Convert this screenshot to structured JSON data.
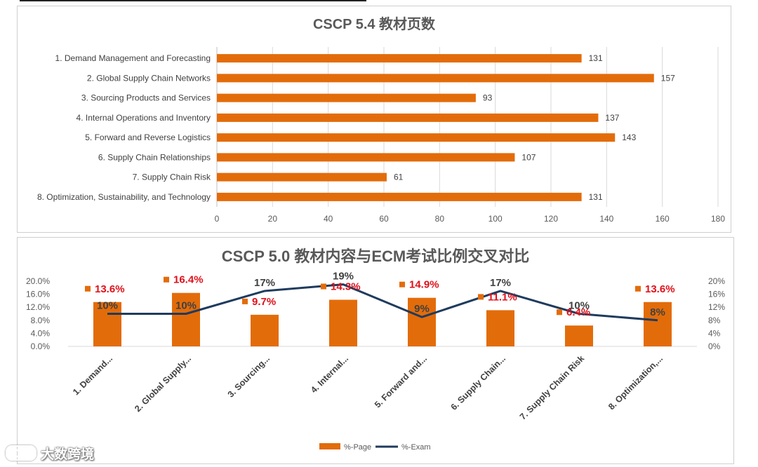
{
  "chart_data": [
    {
      "type": "bar",
      "orientation": "horizontal",
      "title": "CSCP 5.4 教材页数",
      "categories": [
        "1. Demand Management and Forecasting",
        "2. Global Supply Chain Networks",
        "3. Sourcing Products and Services",
        "4. Internal Operations and Inventory",
        "5. Forward and Reverse Logistics",
        "6. Supply Chain Relationships",
        "7. Supply Chain Risk",
        "8. Optimization, Sustainability, and Technology"
      ],
      "values": [
        131,
        157,
        93,
        137,
        143,
        107,
        61,
        131
      ],
      "xlim": [
        0,
        180
      ],
      "xticks": [
        "0",
        "20",
        "40",
        "60",
        "80",
        "100",
        "120",
        "140",
        "160",
        "180"
      ],
      "grid": true,
      "color": "#E36C0A"
    },
    {
      "type": "bar+line",
      "title": "CSCP 5.0 教材内容与ECM考试比例交叉对比",
      "categories": [
        "1. Demand...",
        "2. Global Supply...",
        "3. Sourcing...",
        "4. Internal...",
        "5. Forward and...",
        "6. Supply Chain...",
        "7. Supply Chain Risk",
        "8. Optimization,..."
      ],
      "series": [
        {
          "name": "%-Page",
          "kind": "bar",
          "axis": "left",
          "color": "#E36C0A",
          "values": [
            13.6,
            16.4,
            9.7,
            14.3,
            14.9,
            11.1,
            6.4,
            13.6
          ],
          "labels": [
            "13.6%",
            "16.4%",
            "9.7%",
            "14.3%",
            "14.9%",
            "11.1%",
            "6.4%",
            "13.6%"
          ]
        },
        {
          "name": "%-Exam",
          "kind": "line",
          "axis": "right",
          "color": "#1F3B5E",
          "values": [
            10,
            10,
            17,
            19,
            9,
            17,
            10,
            8
          ],
          "labels": [
            "10%",
            "10%",
            "17%",
            "19%",
            "9%",
            "17%",
            "10%",
            "8%"
          ]
        }
      ],
      "ylim_left": [
        0,
        20
      ],
      "yticks_left": [
        "0.0%",
        "4.0%",
        "8.0%",
        "12.0%",
        "16.0%",
        "20.0%"
      ],
      "ylim_right": [
        0,
        20
      ],
      "yticks_right": [
        "0%",
        "4%",
        "8%",
        "12%",
        "16%",
        "20%"
      ],
      "legend": "bottom",
      "label_color": "#E0101A"
    }
  ],
  "watermark": "大数跨境"
}
